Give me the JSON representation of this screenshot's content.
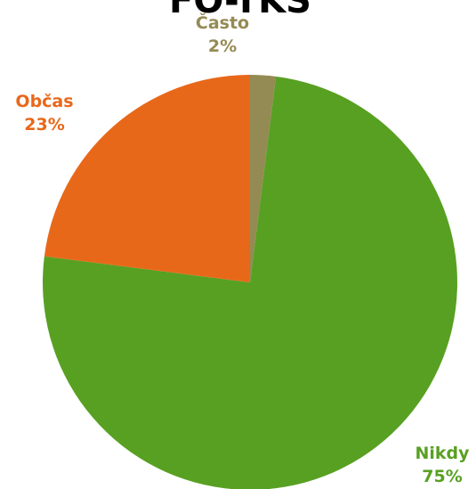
{
  "chart_data": {
    "type": "pie",
    "title": "FO-TKS",
    "slices": [
      {
        "label": "Často",
        "value": 2,
        "value_label": "2%",
        "color": "#948A54"
      },
      {
        "label": "Nikdy",
        "value": 75,
        "value_label": "75%",
        "color": "#58A022"
      },
      {
        "label": "Občas",
        "value": 23,
        "value_label": "23%",
        "color": "#E8681A"
      }
    ],
    "legend": "none",
    "start_angle_deg": 0,
    "direction": "clockwise"
  }
}
